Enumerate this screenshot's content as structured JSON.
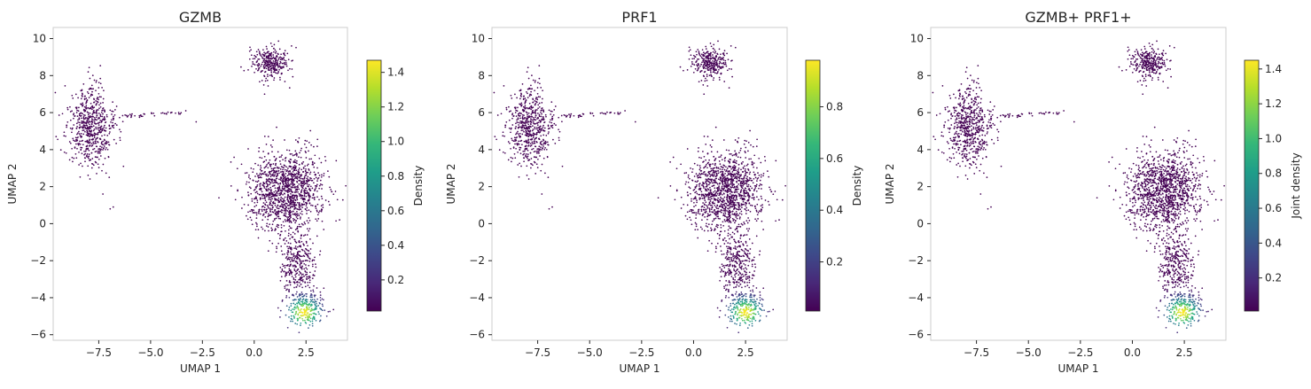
{
  "chart_data": [
    {
      "type": "scatter",
      "title": "GZMB",
      "xlabel": "UMAP 1",
      "ylabel": "UMAP 2",
      "xlim": [
        -9.7,
        4.5
      ],
      "ylim": [
        -6.3,
        10.6
      ],
      "xticks": [
        -7.5,
        -5.0,
        -2.5,
        0.0,
        2.5
      ],
      "xtick_labels": [
        "−7.5",
        "−5.0",
        "−2.5",
        "0.0",
        "2.5"
      ],
      "yticks": [
        -6,
        -4,
        -2,
        0,
        2,
        4,
        6,
        8,
        10
      ],
      "ytick_labels": [
        "−6",
        "−4",
        "−2",
        "0",
        "2",
        "4",
        "6",
        "8",
        "10"
      ],
      "colorbar": {
        "label": "Density",
        "colormap": "viridis",
        "range": [
          0.02,
          1.47
        ],
        "ticks": [
          0.2,
          0.4,
          0.6,
          0.8,
          1.0,
          1.2,
          1.4
        ],
        "tick_labels": [
          "0.2",
          "0.4",
          "0.6",
          "0.8",
          "1.0",
          "1.2",
          "1.4"
        ]
      },
      "hotspot": {
        "x": 2.4,
        "y": -4.8,
        "peak": 1.47
      },
      "clusters": [
        {
          "name": "left",
          "cx": -7.9,
          "cy": 5.2,
          "sx": 0.55,
          "sy": 1.1,
          "n": 620
        },
        {
          "name": "top",
          "cx": 0.8,
          "cy": 8.7,
          "sx": 0.45,
          "sy": 0.45,
          "n": 300
        },
        {
          "name": "main",
          "cx": 1.5,
          "cy": 1.8,
          "sx": 0.9,
          "sy": 1.1,
          "n": 1250
        },
        {
          "name": "tail",
          "cx": 2.1,
          "cy": -2.2,
          "sx": 0.45,
          "sy": 1.0,
          "n": 350
        },
        {
          "name": "bottom",
          "cx": 2.5,
          "cy": -4.6,
          "sx": 0.45,
          "sy": 0.45,
          "n": 260
        }
      ],
      "streak": [
        [
          -6.5,
          5.8
        ],
        [
          -3.5,
          6.0
        ]
      ],
      "outliers": [
        [
          -2.8,
          5.5
        ],
        [
          -6.95,
          0.8
        ],
        [
          -6.8,
          0.9
        ],
        [
          -7.3,
          1.6
        ],
        [
          -1.7,
          1.4
        ],
        [
          -0.9,
          1.3
        ],
        [
          0.5,
          7.0
        ],
        [
          -3.3,
          6.1
        ]
      ]
    },
    {
      "type": "scatter",
      "title": "PRF1",
      "xlabel": "UMAP 1",
      "ylabel": "UMAP 2",
      "xlim": [
        -9.7,
        4.5
      ],
      "ylim": [
        -6.3,
        10.6
      ],
      "xticks": [
        -7.5,
        -5.0,
        -2.5,
        0.0,
        2.5
      ],
      "xtick_labels": [
        "−7.5",
        "−5.0",
        "−2.5",
        "0.0",
        "2.5"
      ],
      "yticks": [
        -6,
        -4,
        -2,
        0,
        2,
        4,
        6,
        8,
        10
      ],
      "ytick_labels": [
        "−6",
        "−4",
        "−2",
        "0",
        "2",
        "4",
        "6",
        "8",
        "10"
      ],
      "colorbar": {
        "label": "Density",
        "colormap": "viridis",
        "range": [
          0.01,
          0.98
        ],
        "ticks": [
          0.2,
          0.4,
          0.6,
          0.8
        ],
        "tick_labels": [
          "0.2",
          "0.4",
          "0.6",
          "0.8"
        ]
      },
      "hotspot": {
        "x": 2.5,
        "y": -4.8,
        "peak": 0.98
      },
      "clusters": [
        {
          "name": "left",
          "cx": -7.9,
          "cy": 5.2,
          "sx": 0.55,
          "sy": 1.1,
          "n": 620
        },
        {
          "name": "top",
          "cx": 0.8,
          "cy": 8.7,
          "sx": 0.45,
          "sy": 0.45,
          "n": 300
        },
        {
          "name": "main",
          "cx": 1.5,
          "cy": 1.8,
          "sx": 0.9,
          "sy": 1.1,
          "n": 1250
        },
        {
          "name": "tail",
          "cx": 2.1,
          "cy": -2.2,
          "sx": 0.45,
          "sy": 1.0,
          "n": 350
        },
        {
          "name": "bottom",
          "cx": 2.5,
          "cy": -4.6,
          "sx": 0.45,
          "sy": 0.45,
          "n": 260
        }
      ],
      "streak": [
        [
          -6.5,
          5.8
        ],
        [
          -3.5,
          6.0
        ]
      ],
      "outliers": [
        [
          -2.8,
          5.5
        ],
        [
          -6.95,
          0.8
        ],
        [
          -6.8,
          0.9
        ],
        [
          -7.3,
          1.6
        ],
        [
          -1.7,
          1.4
        ],
        [
          -0.9,
          1.3
        ],
        [
          0.5,
          7.0
        ],
        [
          -3.3,
          6.1
        ]
      ]
    },
    {
      "type": "scatter",
      "title": "GZMB+ PRF1+",
      "xlabel": "UMAP 1",
      "ylabel": "UMAP 2",
      "xlim": [
        -9.7,
        4.5
      ],
      "ylim": [
        -6.3,
        10.6
      ],
      "xticks": [
        -7.5,
        -5.0,
        -2.5,
        0.0,
        2.5
      ],
      "xtick_labels": [
        "−7.5",
        "−5.0",
        "−2.5",
        "0.0",
        "2.5"
      ],
      "yticks": [
        -6,
        -4,
        -2,
        0,
        2,
        4,
        6,
        8,
        10
      ],
      "ytick_labels": [
        "−6",
        "−4",
        "−2",
        "0",
        "2",
        "4",
        "6",
        "8",
        "10"
      ],
      "colorbar": {
        "label": "Joint density",
        "colormap": "viridis",
        "range": [
          0.01,
          1.45
        ],
        "ticks": [
          0.2,
          0.4,
          0.6,
          0.8,
          1.0,
          1.2,
          1.4
        ],
        "tick_labels": [
          "0.2",
          "0.4",
          "0.6",
          "0.8",
          "1.0",
          "1.2",
          "1.4"
        ]
      },
      "hotspot": {
        "x": 2.4,
        "y": -4.8,
        "peak": 1.45
      },
      "clusters": [
        {
          "name": "left",
          "cx": -7.9,
          "cy": 5.2,
          "sx": 0.55,
          "sy": 1.1,
          "n": 620
        },
        {
          "name": "top",
          "cx": 0.8,
          "cy": 8.7,
          "sx": 0.45,
          "sy": 0.45,
          "n": 300
        },
        {
          "name": "main",
          "cx": 1.5,
          "cy": 1.8,
          "sx": 0.9,
          "sy": 1.1,
          "n": 1250
        },
        {
          "name": "tail",
          "cx": 2.1,
          "cy": -2.2,
          "sx": 0.45,
          "sy": 1.0,
          "n": 350
        },
        {
          "name": "bottom",
          "cx": 2.5,
          "cy": -4.6,
          "sx": 0.45,
          "sy": 0.45,
          "n": 260
        }
      ],
      "streak": [
        [
          -6.5,
          5.8
        ],
        [
          -3.5,
          6.0
        ]
      ],
      "outliers": [
        [
          -2.8,
          5.5
        ],
        [
          -6.95,
          0.8
        ],
        [
          -6.8,
          0.9
        ],
        [
          -7.3,
          1.6
        ],
        [
          -1.7,
          1.4
        ],
        [
          -0.9,
          1.3
        ],
        [
          0.5,
          7.0
        ],
        [
          -3.3,
          6.1
        ]
      ]
    }
  ]
}
